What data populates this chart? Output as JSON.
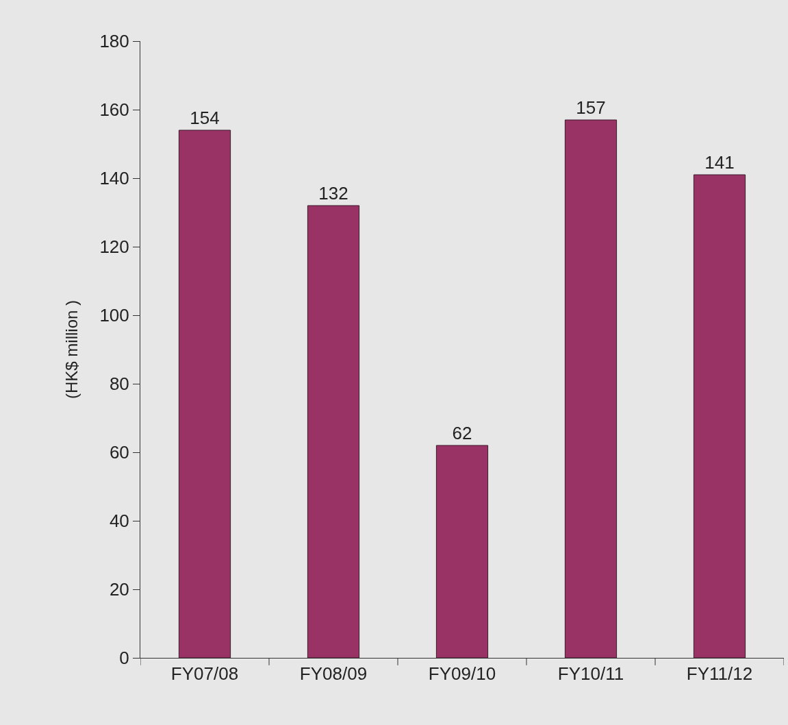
{
  "chart_data": {
    "type": "bar",
    "ylabel": "(HK$ million )",
    "categories": [
      "FY07/08",
      "FY08/09",
      "FY09/10",
      "FY10/11",
      "FY11/12"
    ],
    "values": [
      154,
      132,
      62,
      157,
      141
    ],
    "color": "#993366",
    "data_labels": true,
    "ylim": [
      0,
      180
    ],
    "yticks": [
      0,
      20,
      40,
      60,
      80,
      100,
      120,
      140,
      160,
      180
    ],
    "grid": false,
    "legend": false
  }
}
